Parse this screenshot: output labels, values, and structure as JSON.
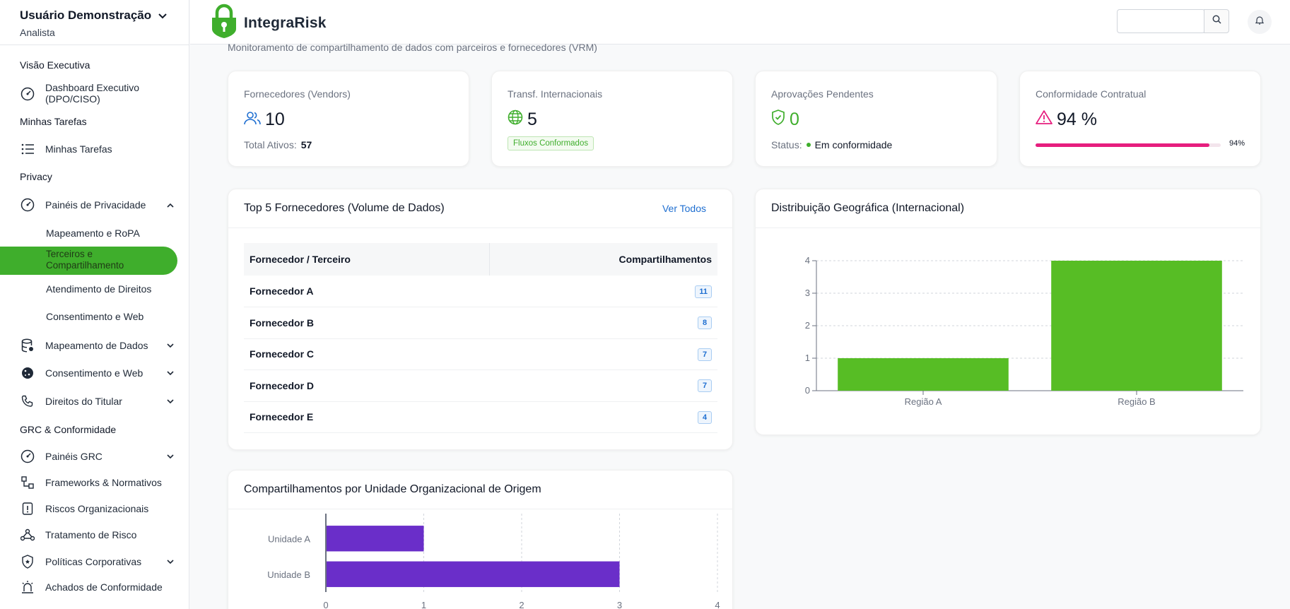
{
  "user": {
    "name": "Usuário Demonstração",
    "role": "Analista"
  },
  "sidebar": {
    "sections": [
      "Visão Executiva",
      "Minhas Tarefas",
      "Privacy",
      "GRC & Conformidade"
    ],
    "items": {
      "dashboard": "Dashboard Executivo\n(DPO/CISO)",
      "tarefas": "Minhas Tarefas",
      "paineis_privacidade": "Painéis de Privacidade",
      "mapeamento_ropa": "Mapeamento e RoPA",
      "terceiros": "Terceiros e Compartilhamento",
      "atendimento": "Atendimento de Direitos",
      "consentimento_sub": "Consentimento e Web",
      "mapeamento_dados": "Mapeamento de Dados",
      "consentimento": "Consentimento e Web",
      "direitos": "Direitos do Titular",
      "paineis_grc": "Painéis GRC",
      "frameworks": "Frameworks & Normativos",
      "riscos": "Riscos Organizacionais",
      "tratamento": "Tratamento de Risco",
      "politicas": "Políticas Corporativas",
      "achados": "Achados de Conformidade"
    }
  },
  "header": {
    "app_name": "IntegraRisk",
    "search_placeholder": ""
  },
  "page": {
    "subtitle": "Monitoramento de compartilhamento de dados com parceiros e fornecedores (VRM)"
  },
  "kpis": {
    "vendors": {
      "label": "Fornecedores (Vendors)",
      "value": "10",
      "foot_label": "Total Ativos:",
      "foot_value": "57"
    },
    "transfers": {
      "label": "Transf. Internacionais",
      "value": "5",
      "badge": "Fluxos Conformados"
    },
    "approvals": {
      "label": "Aprovações Pendentes",
      "value": "0",
      "foot_label": "Status:",
      "foot_value": "Em conformidade"
    },
    "compliance": {
      "label": "Conformidade Contratual",
      "value": "94 %",
      "progress": 0.94,
      "progress_label": "94%"
    }
  },
  "top_vendors": {
    "title": "Top 5 Fornecedores (Volume de Dados)",
    "link": "Ver Todos",
    "columns": [
      "Fornecedor / Terceiro",
      "Compartilhamentos"
    ],
    "rows": [
      {
        "name": "Fornecedor A",
        "count": "11"
      },
      {
        "name": "Fornecedor B",
        "count": "8"
      },
      {
        "name": "Fornecedor C",
        "count": "7"
      },
      {
        "name": "Fornecedor D",
        "count": "7"
      },
      {
        "name": "Fornecedor E",
        "count": "4"
      }
    ]
  },
  "geo_panel": {
    "title": "Distribuição Geográfica (Internacional)"
  },
  "unit_panel": {
    "title": "Compartilhamentos por Unidade Organizacional de Origem"
  },
  "colors": {
    "accent": "#3fae2c",
    "magenta": "#e61e7e",
    "purple": "#6a2ec9",
    "link": "#1f6fd1"
  },
  "chart_data": [
    {
      "type": "bar",
      "title": "Distribuição Geográfica (Internacional)",
      "categories": [
        "Região A",
        "Região B"
      ],
      "values": [
        1,
        4
      ],
      "ylim": [
        0,
        4
      ],
      "yticks": [
        "0",
        "1",
        "2",
        "3",
        "4"
      ],
      "grid": true,
      "color": "#57bd25"
    },
    {
      "type": "bar",
      "orientation": "horizontal",
      "title": "Compartilhamentos por Unidade Organizacional de Origem",
      "categories": [
        "Unidade A",
        "Unidade B"
      ],
      "values": [
        1,
        3
      ],
      "xlim": [
        0,
        4
      ],
      "xticks": [
        "0",
        "1",
        "2",
        "3",
        "4"
      ],
      "grid": true,
      "color": "#6a2ec9"
    }
  ]
}
